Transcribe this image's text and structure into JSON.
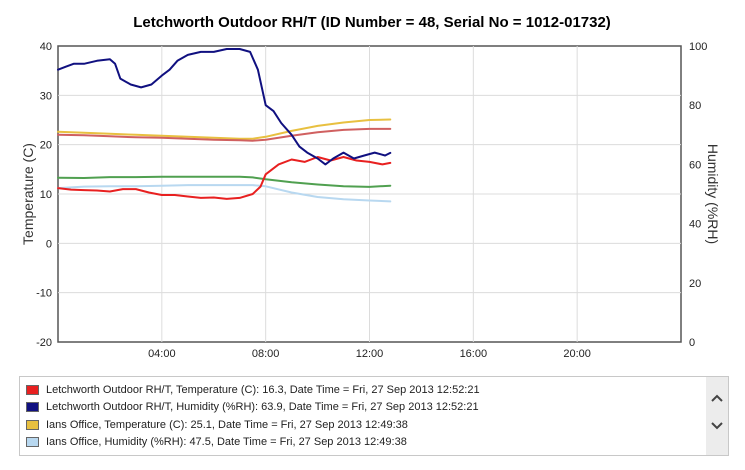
{
  "chart_data": {
    "type": "line",
    "title": "Letchworth Outdoor RH/T (ID Number = 48, Serial No = 1012-01732)",
    "xlabel": "",
    "x_range_hours": [
      0,
      24
    ],
    "x_ticks": [
      "04:00",
      "08:00",
      "12:00",
      "16:00",
      "20:00"
    ],
    "y_left": {
      "label": "Temperature (C)",
      "range": [
        -20,
        40
      ],
      "ticks": [
        -20,
        -10,
        0,
        10,
        20,
        30,
        40
      ]
    },
    "y_right": {
      "label": "Humidity (%RH)",
      "range": [
        0,
        100
      ],
      "ticks": [
        0,
        20,
        40,
        60,
        80,
        100
      ]
    },
    "grid": true,
    "legend_position": "bottom",
    "series": [
      {
        "name": "Ians Office, Temperature (C)",
        "axis": "left",
        "color": "#e8c040",
        "x": [
          0,
          1,
          2,
          3,
          4,
          5,
          6,
          7,
          7.5,
          8,
          9,
          10,
          11,
          12,
          12.8
        ],
        "y": [
          22.6,
          22.4,
          22.2,
          22.0,
          21.8,
          21.6,
          21.4,
          21.2,
          21.2,
          21.6,
          22.8,
          23.8,
          24.5,
          25.0,
          25.1
        ]
      },
      {
        "name": "Ians Office, Humidity (%RH)",
        "axis": "right",
        "color": "#b8d8f0",
        "x": [
          0,
          1,
          2,
          3,
          4,
          5,
          6,
          7,
          7.5,
          8,
          9,
          10,
          11,
          12,
          12.8
        ],
        "y": [
          52.0,
          52.5,
          52.6,
          52.6,
          52.8,
          53.0,
          53.0,
          53.0,
          53.0,
          52.6,
          50.5,
          49.0,
          48.2,
          47.8,
          47.5
        ]
      },
      {
        "name": "",
        "axis": "left",
        "color": "#d06060",
        "x": [
          0,
          1,
          2,
          3,
          4,
          5,
          6,
          7,
          7.5,
          8,
          9,
          10,
          11,
          12,
          12.8
        ],
        "y": [
          22.0,
          21.9,
          21.7,
          21.5,
          21.4,
          21.2,
          21.0,
          20.9,
          20.8,
          21.0,
          21.8,
          22.5,
          23.0,
          23.2,
          23.2
        ]
      },
      {
        "name": "",
        "axis": "right",
        "color": "#50a050",
        "x": [
          0,
          1,
          2,
          3,
          4,
          5,
          6,
          7,
          7.5,
          8,
          9,
          10,
          11,
          12,
          12.8
        ],
        "y": [
          55.5,
          55.4,
          55.7,
          55.7,
          55.8,
          55.8,
          55.8,
          55.8,
          55.6,
          55.0,
          54.0,
          53.2,
          52.6,
          52.4,
          52.8
        ]
      },
      {
        "name": "Letchworth Outdoor RH/T, Temperature (C)",
        "axis": "left",
        "color": "#e82020",
        "x": [
          0,
          0.5,
          1,
          1.5,
          2,
          2.5,
          3,
          3.5,
          4,
          4.5,
          5,
          5.5,
          6,
          6.5,
          7,
          7.5,
          7.8,
          8,
          8.5,
          9,
          9.5,
          10,
          10.5,
          11,
          11.5,
          12,
          12.5,
          12.8
        ],
        "y": [
          11.2,
          10.9,
          10.8,
          10.7,
          10.5,
          11.0,
          11.0,
          10.3,
          9.8,
          9.8,
          9.5,
          9.2,
          9.3,
          9.0,
          9.2,
          10.0,
          11.5,
          14.0,
          16.0,
          17.0,
          16.5,
          17.5,
          16.8,
          17.5,
          16.8,
          16.5,
          16.0,
          16.3
        ]
      },
      {
        "name": "Letchworth Outdoor RH/T, Humidity (%RH)",
        "axis": "right",
        "color": "#101080",
        "x": [
          0,
          0.3,
          0.6,
          1,
          1.5,
          2,
          2.2,
          2.4,
          2.8,
          3.2,
          3.6,
          4,
          4.3,
          4.6,
          5,
          5.5,
          6,
          6.5,
          7,
          7.4,
          7.7,
          8,
          8.3,
          8.6,
          9,
          9.3,
          9.6,
          10,
          10.3,
          10.6,
          11,
          11.4,
          11.8,
          12.2,
          12.6,
          12.8
        ],
        "y": [
          92.0,
          93.0,
          94.0,
          94.0,
          95.0,
          95.5,
          94.0,
          89.0,
          87.0,
          86.0,
          87.0,
          90.0,
          92.0,
          95.0,
          97.0,
          98.0,
          98.0,
          99.0,
          99.0,
          98.0,
          92.0,
          80.0,
          78.0,
          74.0,
          70.0,
          66.0,
          64.0,
          62.0,
          60.0,
          62.0,
          64.0,
          62.0,
          63.0,
          64.0,
          63.0,
          63.9
        ]
      }
    ]
  },
  "legend": {
    "items": [
      {
        "color": "#e82020",
        "text": "Letchworth Outdoor RH/T, Temperature (C): 16.3, Date Time = Fri, 27 Sep 2013 12:52:21"
      },
      {
        "color": "#101080",
        "text": "Letchworth Outdoor RH/T, Humidity (%RH): 63.9, Date Time = Fri, 27 Sep 2013 12:52:21"
      },
      {
        "color": "#e8c040",
        "text": "Ians Office, Temperature (C): 25.1, Date Time = Fri, 27 Sep 2013 12:49:38"
      },
      {
        "color": "#b8d8f0",
        "text": "Ians Office, Humidity (%RH): 47.5, Date Time = Fri, 27 Sep 2013 12:49:38"
      }
    ],
    "scroll_up_icon": "chevron-up-icon",
    "scroll_down_icon": "chevron-down-icon"
  }
}
